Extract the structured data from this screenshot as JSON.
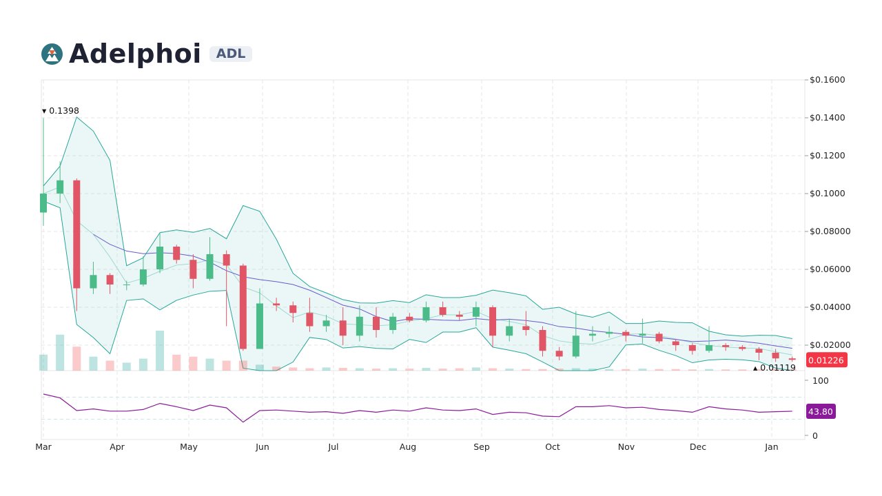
{
  "header": {
    "name": "Adelphoi",
    "ticker": "ADL",
    "logo_icon": "adelphoi-logo-icon"
  },
  "colors": {
    "up": "#26a69a",
    "up_candle": "#4cbb8a",
    "down": "#e05666",
    "band": "#26a69a",
    "ma": "#6a5acd",
    "rsi": "#8b1a9a",
    "last_price_bg": "#f23645",
    "rsi_bg": "#8b1a9a"
  },
  "chart_data": {
    "type": "candlestick",
    "price_axis": {
      "ylim": [
        0,
        0.16
      ],
      "ticks": [
        "$0.1600",
        "$0.1400",
        "$0.1200",
        "$0.1000",
        "$0.08000",
        "$0.06000",
        "$0.04000",
        "$0.02000"
      ],
      "tick_values": [
        0.16,
        0.14,
        0.12,
        0.1,
        0.08,
        0.06,
        0.04,
        0.02
      ]
    },
    "x_ticks": [
      "Mar",
      "Apr",
      "May",
      "Jun",
      "Jul",
      "Aug",
      "Sep",
      "Oct",
      "Nov",
      "Dec",
      "Jan"
    ],
    "high_label": "0.1398",
    "low_label": "0.01119",
    "last_price": "0.01226",
    "grid": true,
    "indicators": [
      "Bollinger Bands",
      "Moving Average",
      "Volume",
      "RSI"
    ],
    "ohlc": [
      [
        0.09,
        0.1398,
        0.083,
        0.1
      ],
      [
        0.1,
        0.117,
        0.095,
        0.107
      ],
      [
        0.107,
        0.108,
        0.038,
        0.05
      ],
      [
        0.05,
        0.064,
        0.047,
        0.057
      ],
      [
        0.057,
        0.058,
        0.047,
        0.052
      ],
      [
        0.052,
        0.054,
        0.049,
        0.052
      ],
      [
        0.052,
        0.067,
        0.051,
        0.06
      ],
      [
        0.06,
        0.079,
        0.058,
        0.072
      ],
      [
        0.072,
        0.073,
        0.063,
        0.065
      ],
      [
        0.065,
        0.068,
        0.05,
        0.055
      ],
      [
        0.055,
        0.077,
        0.054,
        0.068
      ],
      [
        0.068,
        0.07,
        0.03,
        0.062
      ],
      [
        0.062,
        0.063,
        0.017,
        0.018
      ],
      [
        0.018,
        0.05,
        0.018,
        0.042
      ],
      [
        0.042,
        0.045,
        0.038,
        0.041
      ],
      [
        0.041,
        0.043,
        0.032,
        0.037
      ],
      [
        0.037,
        0.045,
        0.027,
        0.03
      ],
      [
        0.03,
        0.036,
        0.027,
        0.033
      ],
      [
        0.033,
        0.04,
        0.02,
        0.025
      ],
      [
        0.025,
        0.041,
        0.022,
        0.035
      ],
      [
        0.035,
        0.04,
        0.024,
        0.028
      ],
      [
        0.028,
        0.037,
        0.026,
        0.035
      ],
      [
        0.035,
        0.037,
        0.032,
        0.033
      ],
      [
        0.033,
        0.043,
        0.032,
        0.04
      ],
      [
        0.04,
        0.043,
        0.035,
        0.036
      ],
      [
        0.036,
        0.038,
        0.033,
        0.035
      ],
      [
        0.035,
        0.043,
        0.03,
        0.04
      ],
      [
        0.04,
        0.041,
        0.019,
        0.025
      ],
      [
        0.025,
        0.034,
        0.022,
        0.03
      ],
      [
        0.03,
        0.038,
        0.025,
        0.028
      ],
      [
        0.028,
        0.03,
        0.014,
        0.017
      ],
      [
        0.017,
        0.019,
        0.012,
        0.014
      ],
      [
        0.014,
        0.038,
        0.013,
        0.025
      ],
      [
        0.025,
        0.03,
        0.022,
        0.026
      ],
      [
        0.026,
        0.03,
        0.024,
        0.027
      ],
      [
        0.027,
        0.028,
        0.022,
        0.025
      ],
      [
        0.025,
        0.034,
        0.021,
        0.026
      ],
      [
        0.026,
        0.027,
        0.021,
        0.022
      ],
      [
        0.022,
        0.023,
        0.017,
        0.02
      ],
      [
        0.02,
        0.021,
        0.015,
        0.017
      ],
      [
        0.017,
        0.03,
        0.016,
        0.02
      ],
      [
        0.02,
        0.021,
        0.017,
        0.019
      ],
      [
        0.019,
        0.02,
        0.017,
        0.018
      ],
      [
        0.018,
        0.019,
        0.012,
        0.016
      ],
      [
        0.016,
        0.018,
        0.0112,
        0.013
      ],
      [
        0.013,
        0.014,
        0.0112,
        0.01226
      ]
    ],
    "volume": [
      40,
      90,
      60,
      35,
      25,
      20,
      30,
      100,
      40,
      35,
      30,
      25,
      25,
      15,
      10,
      8,
      6,
      8,
      7,
      6,
      5,
      6,
      5,
      7,
      5,
      6,
      8,
      6,
      5,
      4,
      4,
      5,
      6,
      5,
      4,
      4,
      5,
      4,
      4,
      3,
      4,
      3,
      3,
      4,
      5,
      3
    ],
    "rsi": {
      "ylim": [
        0,
        100
      ],
      "ticks": [
        "100",
        "0"
      ],
      "last": "43.80",
      "values": [
        75,
        68,
        45,
        48,
        44,
        44,
        47,
        58,
        52,
        45,
        55,
        50,
        24,
        45,
        46,
        44,
        42,
        43,
        40,
        45,
        42,
        46,
        44,
        50,
        46,
        45,
        48,
        38,
        42,
        41,
        35,
        34,
        52,
        52,
        54,
        50,
        51,
        47,
        45,
        42,
        52,
        48,
        46,
        42,
        43,
        43.8
      ]
    }
  }
}
